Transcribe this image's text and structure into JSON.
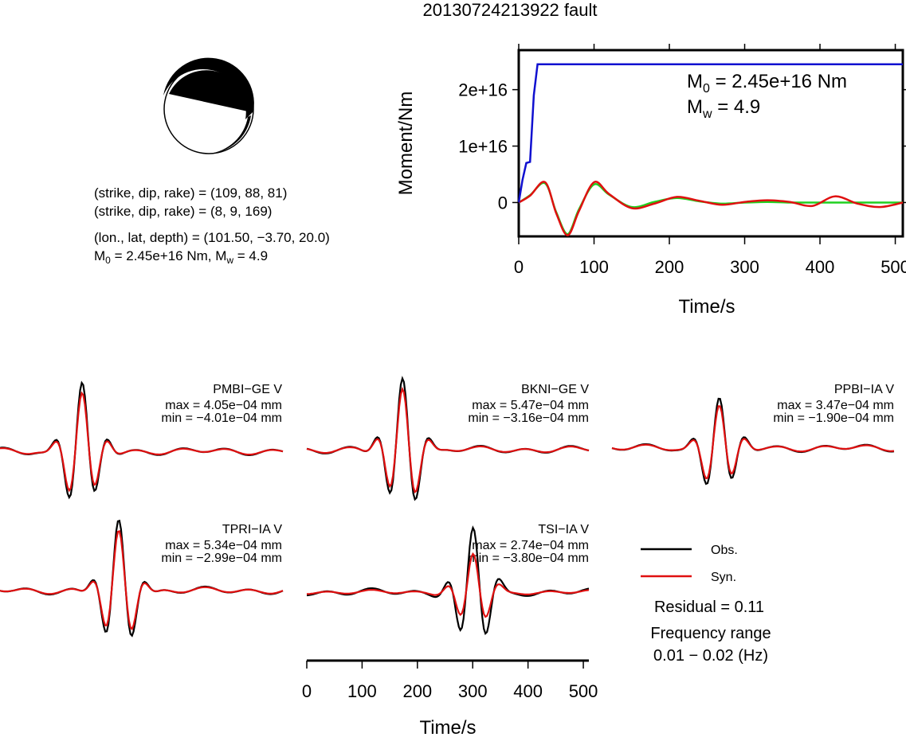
{
  "page_title": "20130724213922 fault",
  "mechanism": {
    "line1": "(strike, dip, rake) = (109, 88, 81)",
    "line2": "(strike, dip, rake) = (8, 9, 169)",
    "line3": "(lon., lat, depth) = (101.50, −3.70, 20.0)",
    "line4_prefix": "M",
    "line4_sub": "0",
    "line4_rest": " = 2.45e+16 Nm, M",
    "line4_sub2": "w",
    "line4_end": " = 4.9"
  },
  "stf": {
    "ylabel": "Moment/Nm",
    "xlabel": "Time/s",
    "yticks": [
      "0",
      "1e+16",
      "2e+16"
    ],
    "xticks": [
      "0",
      "100",
      "200",
      "300",
      "400",
      "500"
    ],
    "m0_prefix": "M",
    "m0_sub": "0",
    "m0_rest": " = 2.45e+16 Nm",
    "mw_prefix": "M",
    "mw_sub": "w",
    "mw_rest": " = 4.9",
    "colors": {
      "moment": "#1010d0",
      "obs": "#e01010",
      "syn": "#20d020"
    }
  },
  "stations": [
    {
      "name": "PMBI−GE V",
      "max": "max = 4.05e−04 mm",
      "min": "min = −4.01e−04 mm"
    },
    {
      "name": "BKNI−GE V",
      "max": "max = 5.47e−04 mm",
      "min": "min = −3.16e−04 mm"
    },
    {
      "name": "PPBI−IA V",
      "max": "max = 3.47e−04 mm",
      "min": "min = −1.90e−04 mm"
    },
    {
      "name": "TPRI−IA V",
      "max": "max = 5.34e−04 mm",
      "min": "min = −2.99e−04 mm"
    },
    {
      "name": "TSI−IA V",
      "max": "max = 2.74e−04 mm",
      "min": "min = −3.80e−04 mm"
    }
  ],
  "waveform_axis": {
    "xticks": [
      "0",
      "100",
      "200",
      "300",
      "400",
      "500"
    ],
    "xlabel": "Time/s"
  },
  "legend": {
    "obs": "Obs.",
    "syn": "Syn.",
    "residual": "Residual = 0.11",
    "freq_title": "Frequency range",
    "freq_value": "0.01 − 0.02 (Hz)"
  },
  "chart_data": [
    {
      "type": "line",
      "title": "",
      "xlabel": "Time/s",
      "ylabel": "Moment/Nm",
      "xlim": [
        0,
        510
      ],
      "ylim": [
        -6000000000000000.0,
        2.7e+16
      ],
      "series": [
        {
          "name": "",
          "color": "#1010d0",
          "x": [
            0,
            5,
            10,
            15,
            20,
            25,
            510
          ],
          "y": [
            0,
            4000000000000000.0,
            7000000000000000.0,
            7200000000000000.0,
            1.9e+16,
            2.45e+16,
            2.45e+16
          ]
        },
        {
          "name": "",
          "color": "#e01010",
          "x": [
            0,
            15,
            35,
            50,
            65,
            80,
            100,
            120,
            150,
            180,
            210,
            240,
            270,
            300,
            330,
            360,
            390,
            420,
            450,
            480,
            510
          ],
          "y": [
            0,
            1200000000000000.0,
            3600000000000000.0,
            -2000000000000000.0,
            -5800000000000000.0,
            -1500000000000000.0,
            3600000000000000.0,
            1500000000000000.0,
            -1000000000000000.0,
            -200000000000000.0,
            1000000000000000.0,
            300000000000000.0,
            -400000000000000.0,
            100000000000000.0,
            400000000000000.0,
            100000000000000.0,
            -600000000000000.0,
            1100000000000000.0,
            -200000000000000.0,
            -800000000000000.0,
            0
          ]
        },
        {
          "name": "",
          "color": "#20d020",
          "x": [
            0,
            15,
            35,
            50,
            65,
            80,
            100,
            120,
            150,
            180,
            210,
            240,
            270,
            300,
            330,
            360,
            390,
            420,
            450,
            480,
            510
          ],
          "y": [
            0,
            1300000000000000.0,
            3400000000000000.0,
            -1800000000000000.0,
            -5600000000000000.0,
            -1200000000000000.0,
            3200000000000000.0,
            1400000000000000.0,
            -800000000000000.0,
            100000000000000.0,
            800000000000000.0,
            200000000000000.0,
            -200000000000000.0,
            0,
            100000000000000.0,
            0,
            0,
            0,
            0,
            0,
            0
          ]
        }
      ]
    }
  ]
}
